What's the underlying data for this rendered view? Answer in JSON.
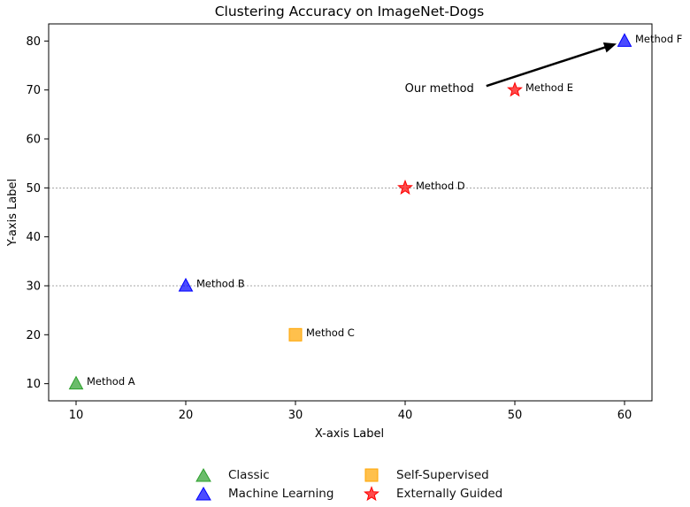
{
  "chart_data": {
    "type": "scatter",
    "title": "Clustering Accuracy on ImageNet-Dogs",
    "xlabel": "X-axis Label",
    "ylabel": "Y-axis Label",
    "xlim": [
      7.5,
      62.5
    ],
    "ylim": [
      6.5,
      83.5
    ],
    "xticks": [
      10,
      20,
      30,
      40,
      50,
      60
    ],
    "yticks": [
      10,
      20,
      30,
      40,
      50,
      60,
      70,
      80
    ],
    "hlines": [
      30,
      50
    ],
    "grid": false,
    "legend_position": "bottom-center",
    "categories": {
      "Classic": {
        "marker": "triangle",
        "color": "#2ca02c"
      },
      "Machine Learning": {
        "marker": "triangle",
        "color": "#0000ff"
      },
      "Self-Supervised": {
        "marker": "square",
        "color": "#ffa500"
      },
      "Externally Guided": {
        "marker": "star",
        "color": "#ff0000"
      }
    },
    "points": [
      {
        "label": "Method A",
        "x": 10,
        "y": 10,
        "category": "Classic"
      },
      {
        "label": "Method B",
        "x": 20,
        "y": 30,
        "category": "Machine Learning"
      },
      {
        "label": "Method C",
        "x": 30,
        "y": 20,
        "category": "Self-Supervised"
      },
      {
        "label": "Method D",
        "x": 40,
        "y": 50,
        "category": "Externally Guided"
      },
      {
        "label": "Method E",
        "x": 50,
        "y": 70,
        "category": "Externally Guided"
      },
      {
        "label": "Method F",
        "x": 60,
        "y": 80,
        "category": "Machine Learning"
      }
    ],
    "annotation": {
      "text": "Our method",
      "text_x": 47,
      "text_y": 71,
      "arrow_to_x": 60,
      "arrow_to_y": 80
    }
  },
  "legend": {
    "items": [
      {
        "label": "Classic",
        "marker": "triangle",
        "color": "#2ca02c"
      },
      {
        "label": "Self-Supervised",
        "marker": "square",
        "color": "#ffa500"
      },
      {
        "label": "Machine Learning",
        "marker": "triangle",
        "color": "#0000ff"
      },
      {
        "label": "Externally Guided",
        "marker": "star",
        "color": "#ff0000"
      }
    ]
  }
}
